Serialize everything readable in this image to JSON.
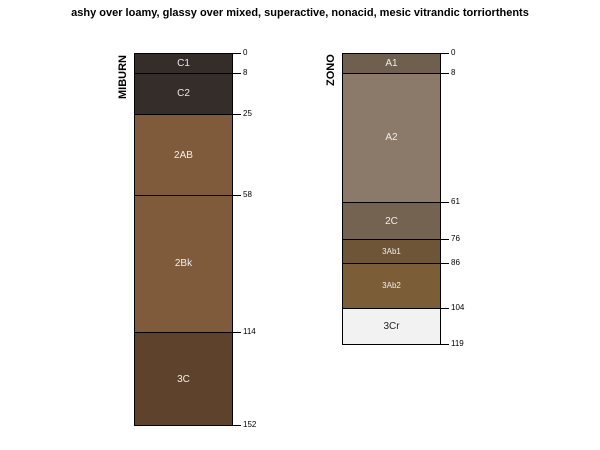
{
  "title": "ashy over loamy, glassy over mixed, superactive, nonacid, mesic vitrandic torriorthents",
  "profiles": [
    {
      "name": "MIBURN",
      "horizons": [
        {
          "name": "C1",
          "top": 0,
          "bottom": 8,
          "color": "#342d29",
          "text": "#e8e8e8"
        },
        {
          "name": "C2",
          "top": 8,
          "bottom": 25,
          "color": "#342d29",
          "text": "#e8e8e8"
        },
        {
          "name": "2AB",
          "top": 25,
          "bottom": 58,
          "color": "#7f5b3c",
          "text": "#eeeeee"
        },
        {
          "name": "2Bk",
          "top": 58,
          "bottom": 114,
          "color": "#7f5b3c",
          "text": "#eeeeee"
        },
        {
          "name": "3C",
          "top": 114,
          "bottom": 152,
          "color": "#5f422b",
          "text": "#eeeeee"
        }
      ]
    },
    {
      "name": "ZONO",
      "horizons": [
        {
          "name": "A1",
          "top": 0,
          "bottom": 8,
          "color": "#6f5f4f",
          "text": "#eeeeee"
        },
        {
          "name": "A2",
          "top": 8,
          "bottom": 61,
          "color": "#8b7a69",
          "text": "#eeeeee"
        },
        {
          "name": "2C",
          "top": 61,
          "bottom": 76,
          "color": "#736350",
          "text": "#eeeeee"
        },
        {
          "name": "3Ab1",
          "top": 76,
          "bottom": 86,
          "color": "#6e5538",
          "text": "#eeeeee"
        },
        {
          "name": "3Ab2",
          "top": 86,
          "bottom": 104,
          "color": "#7b5d38",
          "text": "#eeeeee"
        },
        {
          "name": "3Cr",
          "top": 104,
          "bottom": 119,
          "color": "#f2f2f2",
          "text": "#222222"
        }
      ]
    }
  ]
}
